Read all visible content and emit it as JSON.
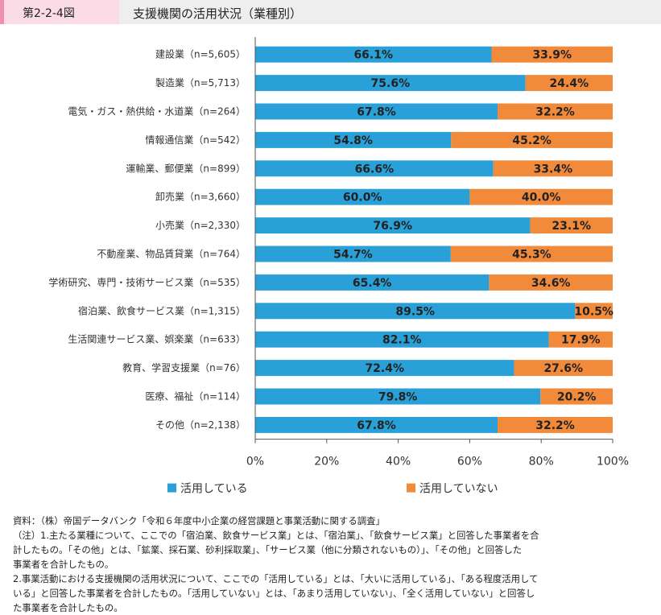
{
  "header": {
    "figure_number": "第2-2-4図",
    "title": "支援機関の活用状況（業種別）"
  },
  "colors": {
    "strip": "#ef8fb4",
    "tag_bg": "#fbdbe6",
    "series_1": "#2aa0d8",
    "series_2": "#f28a3c",
    "axis": "#555555"
  },
  "chart_data": {
    "type": "bar",
    "orientation": "horizontal",
    "stacked": true,
    "categories": [
      "建設業（n=5,605）",
      "製造業（n=5,713）",
      "電気・ガス・熱供給・水道業（n=264）",
      "情報通信業（n=542）",
      "運輸業、郵便業（n=899）",
      "卸売業（n=3,660）",
      "小売業（n=2,330）",
      "不動産業、物品賃貸業（n=764）",
      "学術研究、専門・技術サービス業（n=535）",
      "宿泊業、飲食サービス業（n=1,315）",
      "生活関連サービス業、娯楽業（n=633）",
      "教育、学習支援業（n=76）",
      "医療、福祉（n=114）",
      "その他（n=2,138）"
    ],
    "series": [
      {
        "name": "活用している",
        "values": [
          66.1,
          75.6,
          67.8,
          54.8,
          66.6,
          60.0,
          76.9,
          54.7,
          65.4,
          89.5,
          82.1,
          72.4,
          79.8,
          67.8
        ]
      },
      {
        "name": "活用していない",
        "values": [
          33.9,
          24.4,
          32.2,
          45.2,
          33.4,
          40.0,
          23.1,
          45.3,
          34.6,
          10.5,
          17.9,
          27.6,
          20.2,
          32.2
        ]
      }
    ],
    "xlim": [
      0,
      100
    ],
    "x_ticks": [
      "0%",
      "20%",
      "40%",
      "60%",
      "80%",
      "100%"
    ],
    "legend_position": "bottom",
    "grid": false
  },
  "notes": [
    "資料：（株）帝国データバンク「令和６年度中小企業の経営課題と事業活動に関する調査」",
    "（注）1.主たる業種について、ここでの「宿泊業、飲食サービス業」とは、「宿泊業」、「飲食サービス業」と回答した事業者を合",
    "計したもの。「その他」とは、「鉱業、採石業、砂利採取業」、「サービス業（他に分類されないもの）」、「その他」と回答した",
    "事業者を合計したもの。",
    "2.事業活動における支援機関の活用状況について、ここでの「活用している」とは、「大いに活用している」、「ある程度活用して",
    "いる」と回答した事業者を合計したもの。「活用していない」とは、「あまり活用していない」、「全く活用していない」と回答し",
    "た事業者を合計したもの。"
  ]
}
